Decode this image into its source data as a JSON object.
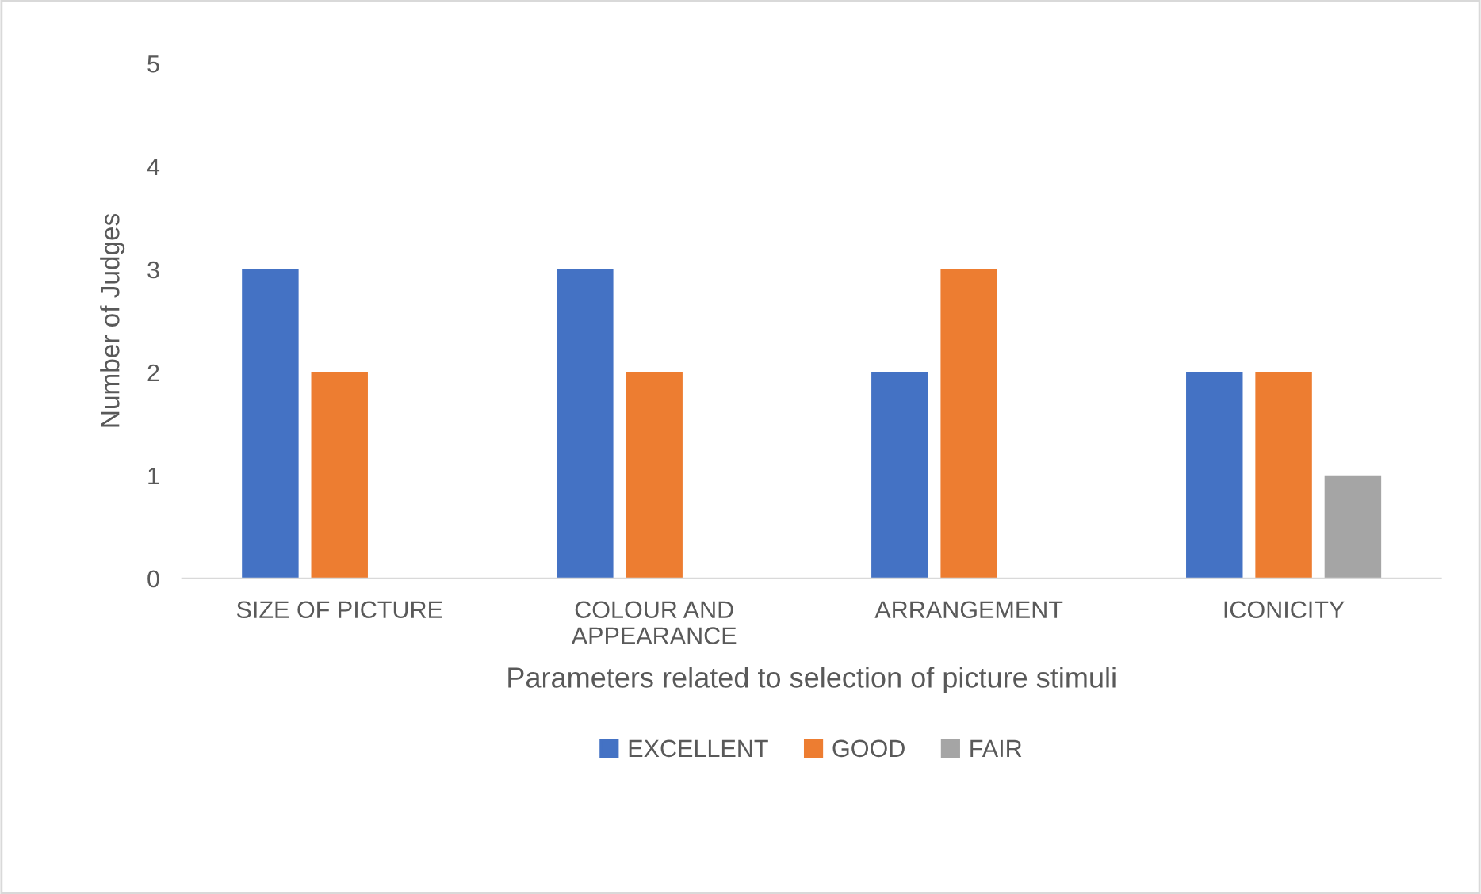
{
  "chart_data": {
    "type": "bar",
    "xlabel": "Parameters related to selection of picture stimuli",
    "ylabel": "Number of Judges",
    "categories": [
      "SIZE OF PICTURE",
      "COLOUR AND\nAPPEARANCE",
      "ARRANGEMENT",
      "ICONICITY"
    ],
    "series": [
      {
        "name": "EXCELLENT",
        "color": "#4472c4",
        "values": [
          3,
          3,
          2,
          2
        ]
      },
      {
        "name": "GOOD",
        "color": "#ed7d31",
        "values": [
          2,
          2,
          3,
          2
        ]
      },
      {
        "name": "FAIR",
        "color": "#a5a5a5",
        "values": [
          0,
          0,
          0,
          1
        ]
      }
    ],
    "ylim": [
      0,
      5
    ],
    "yticks": [
      0,
      1,
      2,
      3,
      4,
      5
    ],
    "grid": false,
    "legend": "bottom"
  }
}
